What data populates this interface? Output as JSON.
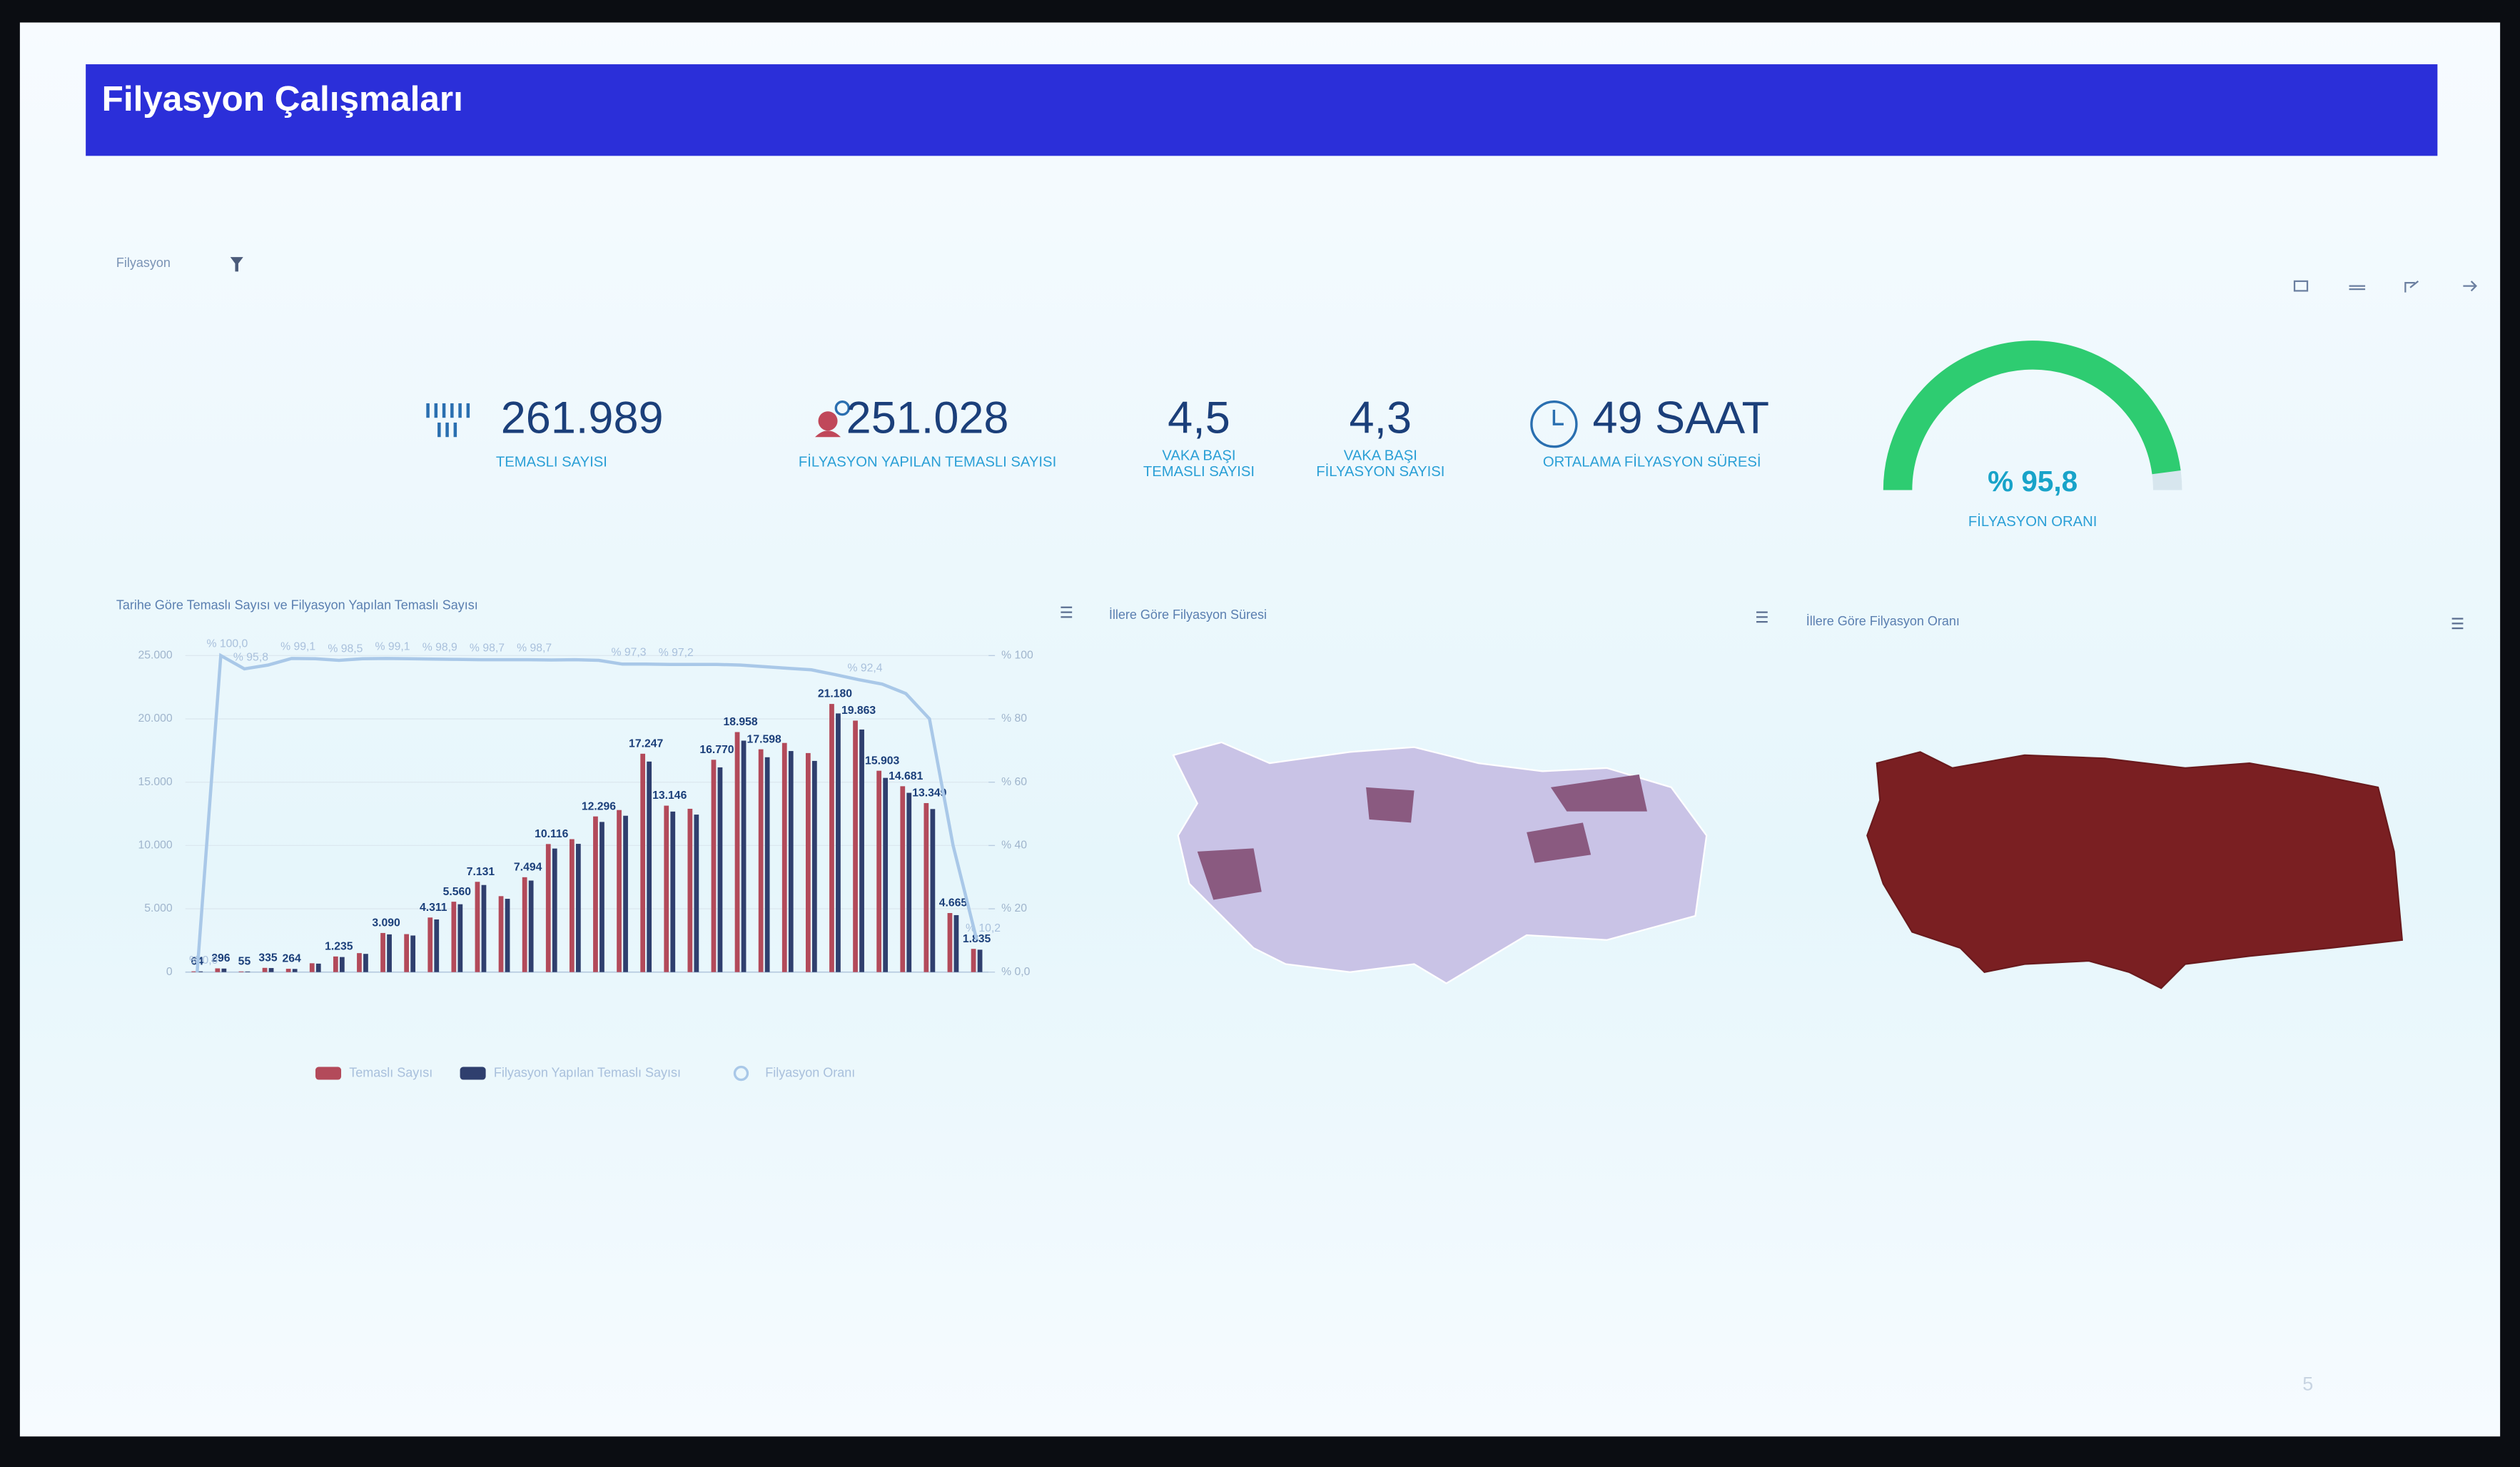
{
  "header": {
    "title": "Filyasyon Çalışmaları"
  },
  "filter": {
    "label": "Filyasyon"
  },
  "kpis": [
    {
      "value": "261.989",
      "label": [
        "TEMASLI SAYISI"
      ]
    },
    {
      "value": "251.028",
      "label": [
        "FİLYASYON YAPILAN TEMASLI SAYISI"
      ]
    },
    {
      "value": "4,5",
      "label": [
        "VAKA BAŞI",
        "TEMASLI SAYISI"
      ]
    },
    {
      "value": "4,3",
      "label": [
        "VAKA BAŞI",
        "FİLYASYON SAYISI"
      ]
    },
    {
      "value": "49 SAAT",
      "label": [
        "ORTALAMA FİLYASYON SÜRESİ"
      ]
    }
  ],
  "gauge": {
    "type": "gauge",
    "value": 95.8,
    "value_label": "% 95,8",
    "range": [
      0,
      100
    ],
    "label": "FİLYASYON ORANI",
    "color": "#2ecc71"
  },
  "chart_data": {
    "type": "bar",
    "title": "Tarihe Göre Temaslı Sayısı ve Filyasyon Yapılan Temaslı Sayısı",
    "categories": [
      null,
      null,
      null,
      null,
      null,
      null,
      null,
      null,
      null,
      null,
      null,
      null,
      null,
      null,
      null,
      null,
      null,
      null,
      null,
      null,
      null,
      null,
      null,
      null,
      null,
      null,
      null,
      null,
      null,
      null,
      null,
      null,
      null,
      null
    ],
    "series": [
      {
        "name": "Temaslı Sayısı",
        "color": "#b34a5a",
        "values": [
          64,
          296,
          55,
          335,
          264,
          700,
          1235,
          1500,
          3090,
          3000,
          4311,
          5560,
          7131,
          6000,
          7494,
          10116,
          10500,
          12296,
          12800,
          17247,
          13146,
          12900,
          16770,
          18958,
          17598,
          18100,
          17300,
          21180,
          19863,
          15903,
          14681,
          13349,
          4665,
          1835
        ],
        "value_labels": [
          "64",
          "296",
          "55",
          "335",
          "264",
          null,
          "1.235",
          null,
          "3.090",
          null,
          "4.311",
          "5.560",
          "7.131",
          null,
          "7.494",
          "10.116",
          null,
          "12.296",
          null,
          "17.247",
          "13.146",
          null,
          "16.770",
          "18.958",
          "17.598",
          null,
          null,
          "21.180",
          "19.863",
          "15.903",
          "14.681",
          "13.349",
          "4.665",
          "1.835"
        ]
      },
      {
        "name": "Filyasyon Yapılan Temaslı Sayısı",
        "color": "#2f3f6e",
        "values": [
          60,
          280,
          50,
          320,
          250,
          670,
          1190,
          1440,
          2980,
          2890,
          4160,
          5360,
          6880,
          5790,
          7230,
          9760,
          10130,
          11860,
          12350,
          16630,
          12680,
          12440,
          16170,
          18280,
          16970,
          17460,
          16680,
          20430,
          19160,
          15340,
          14160,
          12880,
          4500,
          1770
        ]
      },
      {
        "name": "Filyasyon Oranı",
        "type": "line",
        "axis": "y2",
        "color": "#a9c8e8",
        "values": [
          0,
          100,
          95.8,
          97,
          99.1,
          99,
          98.5,
          99,
          99.1,
          99,
          98.9,
          98.8,
          98.7,
          98.7,
          98.7,
          98.6,
          98.7,
          98.5,
          97.3,
          97.3,
          97.2,
          97.2,
          97.2,
          97,
          96.5,
          96,
          95.5,
          94,
          92.4,
          91,
          88,
          80,
          40,
          10.2
        ],
        "value_labels": [
          "% 0,0",
          "% 100,0",
          "% 95,8",
          null,
          "% 99,1",
          null,
          "% 98,5",
          null,
          "% 99,1",
          null,
          "% 98,9",
          null,
          "% 98,7",
          null,
          "% 98,7",
          null,
          null,
          null,
          "% 97,3",
          null,
          "% 97,2",
          null,
          null,
          null,
          null,
          null,
          null,
          null,
          "% 92,4",
          null,
          null,
          null,
          null,
          "% 10,2"
        ]
      }
    ],
    "ylim": [
      0,
      25000
    ],
    "yticks": [
      0,
      {
        "value": 5000,
        "label": "5.000"
      },
      {
        "value": 10000,
        "label": "10.000"
      },
      {
        "value": 15000,
        "label": "15.000"
      },
      {
        "value": 20000,
        "label": "20.000"
      },
      {
        "value": 25000,
        "label": "25.000"
      }
    ],
    "y2lim": [
      0,
      100
    ],
    "y2ticks": [
      {
        "value": 0,
        "label": "% 0,0"
      },
      {
        "value": 20,
        "label": "% 20"
      },
      {
        "value": 40,
        "label": "% 40"
      },
      {
        "value": 60,
        "label": "% 60"
      },
      {
        "value": 80,
        "label": "% 80"
      },
      {
        "value": 100,
        "label": "% 100"
      }
    ],
    "grid": true,
    "legend": "bottom"
  },
  "maps": [
    {
      "title": "İllere Göre Filyasyon Süresi"
    },
    {
      "title": "İllere Göre Filyasyon Oranı"
    }
  ],
  "page_number": "5"
}
